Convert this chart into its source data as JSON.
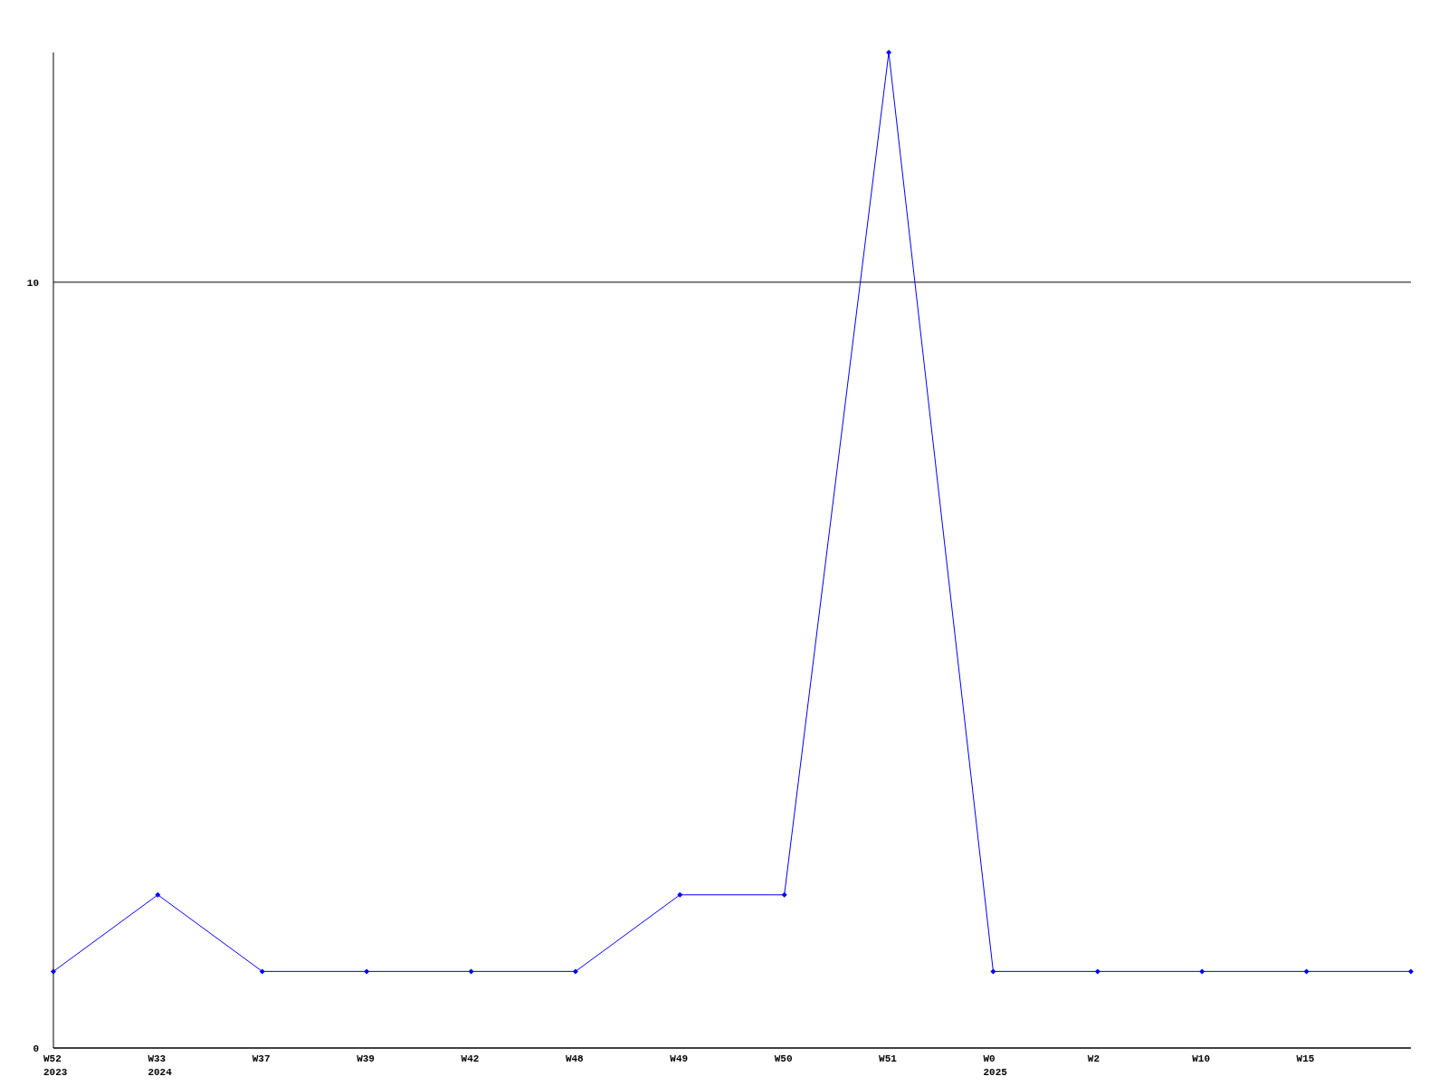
{
  "chart_data": {
    "type": "line",
    "categories": [
      "W52\n2023",
      "W33\n2024",
      "W37",
      "W39",
      "W42",
      "W48",
      "W49",
      "W50",
      "W51",
      "W0\n2025",
      "W2",
      "W10",
      "W15",
      null
    ],
    "series": [
      {
        "color": "#0000ff",
        "values": [
          1,
          2,
          1,
          1,
          1,
          1,
          2,
          2,
          13,
          1,
          1,
          1,
          1,
          1
        ]
      }
    ],
    "ylim": [
      0,
      13
    ],
    "yticks": [
      0,
      10
    ],
    "grid": "y",
    "marker": "diamond",
    "line_style": "solid"
  }
}
